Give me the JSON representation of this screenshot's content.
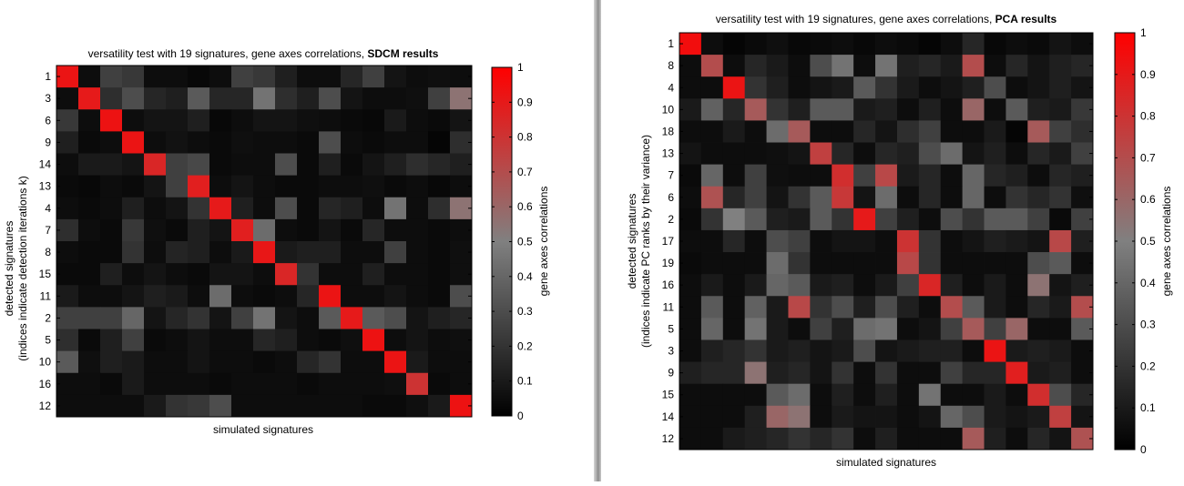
{
  "colors": {
    "low": "#000000",
    "mid": "#808080",
    "high": "#ff0000",
    "background": "#ffffff"
  },
  "chart_data": [
    {
      "type": "heatmap",
      "title_prefix": "versatility test with 19 signatures, gene axes correlations, ",
      "title_bold": "SDCM results",
      "xlabel": "simulated signatures",
      "ylabel_line1": "detected signatures",
      "ylabel_line2": "(indices indicate detection iterations k)",
      "row_labels": [
        "1",
        "3",
        "6",
        "9",
        "14",
        "13",
        "4",
        "7",
        "8",
        "15",
        "11",
        "2",
        "5",
        "10",
        "16",
        "12"
      ],
      "colorbar": {
        "label": "gene axes correlations",
        "ticks": [
          "0",
          "0.1",
          "0.2",
          "0.3",
          "0.4",
          "0.5",
          "0.6",
          "0.7",
          "0.8",
          "0.9",
          "1"
        ],
        "range": [
          0,
          1
        ]
      },
      "matrix": [
        [
          0.92,
          0.05,
          0.25,
          0.22,
          0.05,
          0.05,
          0.03,
          0.05,
          0.25,
          0.22,
          0.12,
          0.05,
          0.05,
          0.15,
          0.25,
          0.08,
          0.05,
          0.06,
          0.05
        ],
        [
          0.05,
          0.9,
          0.18,
          0.3,
          0.15,
          0.12,
          0.35,
          0.15,
          0.15,
          0.45,
          0.18,
          0.12,
          0.3,
          0.08,
          0.05,
          0.05,
          0.06,
          0.25,
          0.55
        ],
        [
          0.22,
          0.05,
          0.93,
          0.05,
          0.08,
          0.08,
          0.12,
          0.03,
          0.05,
          0.08,
          0.08,
          0.06,
          0.05,
          0.04,
          0.03,
          0.1,
          0.05,
          0.04,
          0.08
        ],
        [
          0.12,
          0.04,
          0.05,
          0.92,
          0.05,
          0.07,
          0.05,
          0.04,
          0.06,
          0.05,
          0.05,
          0.04,
          0.3,
          0.05,
          0.04,
          0.05,
          0.05,
          0.02,
          0.18
        ],
        [
          0.05,
          0.1,
          0.1,
          0.08,
          0.85,
          0.25,
          0.28,
          0.04,
          0.05,
          0.05,
          0.3,
          0.04,
          0.12,
          0.04,
          0.08,
          0.12,
          0.18,
          0.15,
          0.12
        ],
        [
          0.04,
          0.03,
          0.05,
          0.04,
          0.08,
          0.25,
          0.88,
          0.05,
          0.08,
          0.05,
          0.04,
          0.04,
          0.05,
          0.05,
          0.06,
          0.04,
          0.05,
          0.03,
          0.05
        ],
        [
          0.05,
          0.04,
          0.05,
          0.12,
          0.05,
          0.08,
          0.2,
          0.9,
          0.12,
          0.05,
          0.3,
          0.04,
          0.15,
          0.12,
          0.05,
          0.45,
          0.05,
          0.18,
          0.55
        ],
        [
          0.18,
          0.05,
          0.04,
          0.22,
          0.06,
          0.04,
          0.12,
          0.08,
          0.88,
          0.42,
          0.05,
          0.04,
          0.08,
          0.04,
          0.15,
          0.05,
          0.05,
          0.04,
          0.05
        ],
        [
          0.05,
          0.04,
          0.04,
          0.2,
          0.05,
          0.14,
          0.12,
          0.05,
          0.1,
          0.91,
          0.1,
          0.12,
          0.12,
          0.05,
          0.05,
          0.25,
          0.05,
          0.04,
          0.06
        ],
        [
          0.04,
          0.04,
          0.12,
          0.05,
          0.08,
          0.05,
          0.04,
          0.08,
          0.08,
          0.05,
          0.85,
          0.2,
          0.05,
          0.05,
          0.12,
          0.05,
          0.05,
          0.04,
          0.06
        ],
        [
          0.1,
          0.05,
          0.05,
          0.08,
          0.12,
          0.1,
          0.05,
          0.42,
          0.05,
          0.04,
          0.05,
          0.15,
          0.92,
          0.05,
          0.05,
          0.08,
          0.05,
          0.04,
          0.3
        ],
        [
          0.25,
          0.25,
          0.25,
          0.4,
          0.08,
          0.15,
          0.2,
          0.08,
          0.25,
          0.45,
          0.08,
          0.05,
          0.35,
          0.9,
          0.35,
          0.3,
          0.08,
          0.12,
          0.15
        ],
        [
          0.18,
          0.04,
          0.12,
          0.25,
          0.04,
          0.05,
          0.08,
          0.05,
          0.05,
          0.15,
          0.12,
          0.05,
          0.04,
          0.06,
          0.93,
          0.05,
          0.08,
          0.05,
          0.06
        ],
        [
          0.35,
          0.06,
          0.12,
          0.1,
          0.05,
          0.05,
          0.08,
          0.05,
          0.05,
          0.04,
          0.05,
          0.15,
          0.2,
          0.05,
          0.05,
          0.92,
          0.1,
          0.05,
          0.05
        ],
        [
          0.05,
          0.05,
          0.04,
          0.1,
          0.05,
          0.05,
          0.05,
          0.04,
          0.05,
          0.05,
          0.05,
          0.04,
          0.05,
          0.05,
          0.05,
          0.06,
          0.8,
          0.04,
          0.05
        ],
        [
          0.05,
          0.05,
          0.05,
          0.05,
          0.1,
          0.2,
          0.22,
          0.3,
          0.05,
          0.05,
          0.05,
          0.05,
          0.05,
          0.05,
          0.04,
          0.04,
          0.06,
          0.1,
          0.93
        ]
      ]
    },
    {
      "type": "heatmap",
      "title_prefix": "versatility test with 19 signatures, gene axes correlations, ",
      "title_bold": "PCA results",
      "xlabel": "simulated signatures",
      "ylabel_line1": "detected signatures",
      "ylabel_line2": "(indices indicate PC ranks by their variance)",
      "row_labels": [
        "1",
        "8",
        "4",
        "10",
        "18",
        "13",
        "7",
        "6",
        "2",
        "17",
        "19",
        "16",
        "11",
        "5",
        "3",
        "9",
        "15",
        "14",
        "12"
      ],
      "colorbar": {
        "label": "gene axes correlations",
        "ticks": [
          "0",
          "0.1",
          "0.2",
          "0.3",
          "0.4",
          "0.5",
          "0.6",
          "0.7",
          "0.8",
          "0.9",
          "1"
        ],
        "range": [
          0,
          1
        ]
      },
      "matrix": [
        [
          0.95,
          0.05,
          0.02,
          0.04,
          0.06,
          0.03,
          0.04,
          0.05,
          0.03,
          0.05,
          0.04,
          0.02,
          0.05,
          0.15,
          0.03,
          0.05,
          0.04,
          0.08,
          0.05
        ],
        [
          0.05,
          0.7,
          0.05,
          0.15,
          0.1,
          0.05,
          0.3,
          0.45,
          0.05,
          0.45,
          0.12,
          0.15,
          0.1,
          0.7,
          0.05,
          0.15,
          0.08,
          0.12,
          0.15
        ],
        [
          0.05,
          0.05,
          0.92,
          0.2,
          0.12,
          0.05,
          0.08,
          0.1,
          0.35,
          0.2,
          0.1,
          0.05,
          0.08,
          0.12,
          0.3,
          0.05,
          0.08,
          0.12,
          0.08
        ],
        [
          0.1,
          0.38,
          0.15,
          0.65,
          0.2,
          0.12,
          0.35,
          0.35,
          0.1,
          0.12,
          0.05,
          0.12,
          0.05,
          0.6,
          0.05,
          0.35,
          0.12,
          0.1,
          0.22
        ],
        [
          0.05,
          0.05,
          0.1,
          0.05,
          0.42,
          0.65,
          0.05,
          0.05,
          0.15,
          0.08,
          0.18,
          0.25,
          0.05,
          0.05,
          0.1,
          0.02,
          0.65,
          0.25,
          0.18
        ],
        [
          0.08,
          0.05,
          0.05,
          0.05,
          0.06,
          0.08,
          0.75,
          0.15,
          0.05,
          0.15,
          0.12,
          0.3,
          0.42,
          0.08,
          0.12,
          0.05,
          0.15,
          0.1,
          0.25
        ],
        [
          0.04,
          0.4,
          0.05,
          0.25,
          0.06,
          0.05,
          0.05,
          0.82,
          0.25,
          0.72,
          0.1,
          0.15,
          0.05,
          0.4,
          0.15,
          0.12,
          0.05,
          0.15,
          0.12
        ],
        [
          0.05,
          0.68,
          0.15,
          0.25,
          0.08,
          0.2,
          0.35,
          0.78,
          0.08,
          0.42,
          0.05,
          0.15,
          0.05,
          0.4,
          0.05,
          0.2,
          0.15,
          0.2,
          0.06
        ],
        [
          0.04,
          0.2,
          0.5,
          0.35,
          0.12,
          0.1,
          0.35,
          0.2,
          0.9,
          0.25,
          0.12,
          0.05,
          0.3,
          0.2,
          0.35,
          0.35,
          0.25,
          0.04,
          0.25
        ],
        [
          0.05,
          0.05,
          0.15,
          0.05,
          0.3,
          0.25,
          0.05,
          0.08,
          0.08,
          0.05,
          0.8,
          0.2,
          0.05,
          0.08,
          0.12,
          0.1,
          0.08,
          0.72,
          0.12
        ],
        [
          0.04,
          0.05,
          0.05,
          0.05,
          0.42,
          0.2,
          0.05,
          0.05,
          0.05,
          0.05,
          0.72,
          0.2,
          0.05,
          0.05,
          0.05,
          0.05,
          0.3,
          0.35,
          0.05
        ],
        [
          0.05,
          0.1,
          0.05,
          0.1,
          0.4,
          0.35,
          0.1,
          0.12,
          0.05,
          0.1,
          0.25,
          0.85,
          0.12,
          0.05,
          0.1,
          0.05,
          0.55,
          0.08,
          0.12
        ],
        [
          0.05,
          0.35,
          0.05,
          0.38,
          0.1,
          0.72,
          0.2,
          0.3,
          0.12,
          0.3,
          0.12,
          0.05,
          0.7,
          0.35,
          0.1,
          0.05,
          0.15,
          0.1,
          0.7
        ],
        [
          0.05,
          0.4,
          0.05,
          0.45,
          0.1,
          0.05,
          0.25,
          0.12,
          0.42,
          0.45,
          0.05,
          0.08,
          0.25,
          0.65,
          0.25,
          0.6,
          0.05,
          0.05,
          0.35
        ],
        [
          0.05,
          0.12,
          0.15,
          0.2,
          0.1,
          0.12,
          0.08,
          0.1,
          0.3,
          0.08,
          0.1,
          0.12,
          0.12,
          0.05,
          0.92,
          0.1,
          0.12,
          0.1,
          0.05
        ],
        [
          0.12,
          0.15,
          0.15,
          0.55,
          0.12,
          0.15,
          0.08,
          0.2,
          0.05,
          0.2,
          0.05,
          0.05,
          0.25,
          0.15,
          0.15,
          0.88,
          0.1,
          0.12,
          0.05
        ],
        [
          0.05,
          0.05,
          0.05,
          0.05,
          0.35,
          0.42,
          0.05,
          0.12,
          0.05,
          0.12,
          0.05,
          0.45,
          0.05,
          0.05,
          0.1,
          0.05,
          0.82,
          0.3,
          0.15
        ],
        [
          0.05,
          0.05,
          0.05,
          0.12,
          0.6,
          0.55,
          0.05,
          0.1,
          0.08,
          0.08,
          0.05,
          0.08,
          0.4,
          0.3,
          0.1,
          0.08,
          0.1,
          0.75,
          0.08
        ],
        [
          0.05,
          0.05,
          0.1,
          0.12,
          0.15,
          0.2,
          0.15,
          0.2,
          0.05,
          0.12,
          0.05,
          0.05,
          0.05,
          0.65,
          0.12,
          0.05,
          0.15,
          0.08,
          0.68
        ]
      ]
    }
  ]
}
